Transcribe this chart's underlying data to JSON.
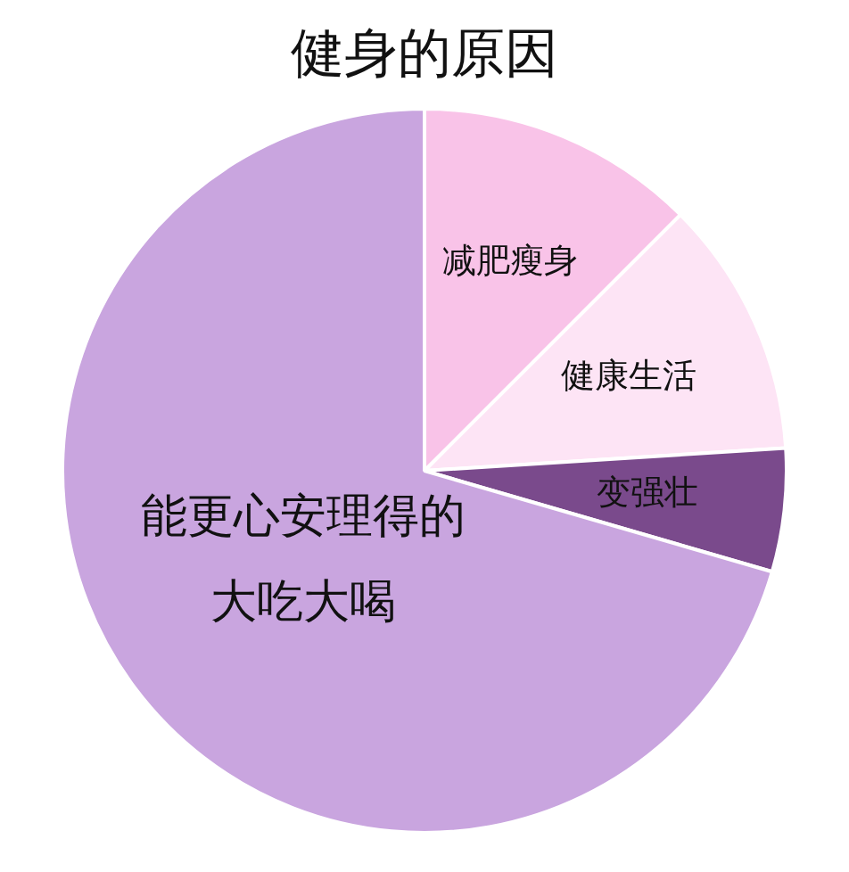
{
  "chart_data": {
    "type": "pie",
    "title": "健身的原因",
    "categories": [
      "减肥瘦身",
      "健康生活",
      "变强壮",
      "能更心安理得的大吃大喝"
    ],
    "values": [
      12.5,
      11.5,
      5.5,
      70.5
    ],
    "colors": [
      "#f9c3e8",
      "#fde4f5",
      "#7a4a8c",
      "#c9a5df"
    ],
    "legend": false
  }
}
